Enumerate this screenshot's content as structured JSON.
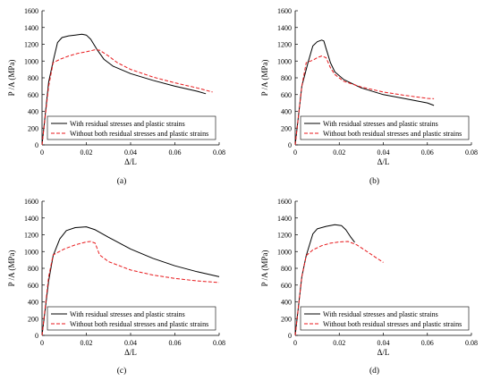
{
  "chart_data": [
    {
      "type": "line",
      "caption": "(a)",
      "xlabel": "Δ/L",
      "ylabel": "P /A (MPa)",
      "xlim": [
        0,
        0.08
      ],
      "ylim": [
        0,
        1600
      ],
      "xticks": [
        "0",
        "0.02",
        "0.04",
        "0.06",
        "0.08"
      ],
      "yticks": [
        "0",
        "200",
        "400",
        "600",
        "800",
        "1000",
        "1200",
        "1400",
        "1600"
      ],
      "legend": "bottom-left",
      "grid": false,
      "series": [
        {
          "name": "With residual stresses and plastic strains",
          "color": "#000000",
          "dash": "solid",
          "points": [
            [
              0,
              0
            ],
            [
              0.003,
              750
            ],
            [
              0.005,
              1000
            ],
            [
              0.007,
              1220
            ],
            [
              0.009,
              1280
            ],
            [
              0.012,
              1300
            ],
            [
              0.015,
              1310
            ],
            [
              0.018,
              1320
            ],
            [
              0.02,
              1310
            ],
            [
              0.022,
              1260
            ],
            [
              0.025,
              1130
            ],
            [
              0.028,
              1020
            ],
            [
              0.032,
              940
            ],
            [
              0.04,
              850
            ],
            [
              0.05,
              770
            ],
            [
              0.06,
              700
            ],
            [
              0.07,
              640
            ],
            [
              0.074,
              610
            ]
          ]
        },
        {
          "name": "Without both residual stresses and plastic strains",
          "color": "#e8191c",
          "dash": "dashed",
          "points": [
            [
              0,
              0
            ],
            [
              0.003,
              700
            ],
            [
              0.005,
              980
            ],
            [
              0.008,
              1020
            ],
            [
              0.012,
              1060
            ],
            [
              0.016,
              1090
            ],
            [
              0.02,
              1110
            ],
            [
              0.024,
              1135
            ],
            [
              0.026,
              1130
            ],
            [
              0.03,
              1060
            ],
            [
              0.034,
              980
            ],
            [
              0.04,
              900
            ],
            [
              0.05,
              810
            ],
            [
              0.06,
              740
            ],
            [
              0.07,
              680
            ],
            [
              0.077,
              630
            ]
          ]
        }
      ]
    },
    {
      "type": "line",
      "caption": "(b)",
      "xlabel": "Δ/L",
      "ylabel": "P /A (MPa)",
      "xlim": [
        0,
        0.08
      ],
      "ylim": [
        0,
        1600
      ],
      "xticks": [
        "0",
        "0.02",
        "0.04",
        "0.06",
        "0.08"
      ],
      "yticks": [
        "0",
        "200",
        "400",
        "600",
        "800",
        "1000",
        "1200",
        "1400",
        "1600"
      ],
      "legend": "bottom-left",
      "grid": false,
      "series": [
        {
          "name": "With residual stresses and plastic strains",
          "color": "#000000",
          "dash": "solid",
          "points": [
            [
              0,
              0
            ],
            [
              0.003,
              700
            ],
            [
              0.006,
              1000
            ],
            [
              0.008,
              1180
            ],
            [
              0.01,
              1230
            ],
            [
              0.012,
              1250
            ],
            [
              0.013,
              1240
            ],
            [
              0.014,
              1150
            ],
            [
              0.016,
              980
            ],
            [
              0.018,
              870
            ],
            [
              0.022,
              780
            ],
            [
              0.03,
              680
            ],
            [
              0.04,
              600
            ],
            [
              0.05,
              550
            ],
            [
              0.06,
              500
            ],
            [
              0.063,
              470
            ]
          ]
        },
        {
          "name": "Without both residual stresses and plastic strains",
          "color": "#e8191c",
          "dash": "dashed",
          "points": [
            [
              0,
              0
            ],
            [
              0.003,
              700
            ],
            [
              0.005,
              980
            ],
            [
              0.008,
              1010
            ],
            [
              0.01,
              1040
            ],
            [
              0.012,
              1060
            ],
            [
              0.014,
              1040
            ],
            [
              0.016,
              920
            ],
            [
              0.018,
              840
            ],
            [
              0.022,
              760
            ],
            [
              0.03,
              690
            ],
            [
              0.04,
              630
            ],
            [
              0.05,
              590
            ],
            [
              0.06,
              555
            ],
            [
              0.063,
              550
            ]
          ]
        }
      ]
    },
    {
      "type": "line",
      "caption": "(c)",
      "xlabel": "Δ/L",
      "ylabel": "P /A (MPa)",
      "xlim": [
        0,
        0.08
      ],
      "ylim": [
        0,
        1600
      ],
      "xticks": [
        "0",
        "0.02",
        "0.04",
        "0.06",
        "0.08"
      ],
      "yticks": [
        "0",
        "200",
        "400",
        "600",
        "800",
        "1000",
        "1200",
        "1400",
        "1600"
      ],
      "legend": "bottom-left",
      "grid": false,
      "series": [
        {
          "name": "With residual stresses and plastic strains",
          "color": "#000000",
          "dash": "solid",
          "points": [
            [
              0,
              0
            ],
            [
              0.003,
              650
            ],
            [
              0.005,
              950
            ],
            [
              0.008,
              1150
            ],
            [
              0.011,
              1250
            ],
            [
              0.015,
              1285
            ],
            [
              0.02,
              1295
            ],
            [
              0.024,
              1260
            ],
            [
              0.03,
              1170
            ],
            [
              0.04,
              1030
            ],
            [
              0.05,
              920
            ],
            [
              0.06,
              830
            ],
            [
              0.07,
              760
            ],
            [
              0.08,
              700
            ]
          ]
        },
        {
          "name": "Without both residual stresses and plastic strains",
          "color": "#e8191c",
          "dash": "dashed",
          "points": [
            [
              0,
              0
            ],
            [
              0.003,
              700
            ],
            [
              0.005,
              960
            ],
            [
              0.01,
              1030
            ],
            [
              0.015,
              1080
            ],
            [
              0.02,
              1115
            ],
            [
              0.022,
              1120
            ],
            [
              0.024,
              1100
            ],
            [
              0.026,
              960
            ],
            [
              0.03,
              880
            ],
            [
              0.04,
              780
            ],
            [
              0.05,
              720
            ],
            [
              0.06,
              680
            ],
            [
              0.07,
              650
            ],
            [
              0.08,
              630
            ]
          ]
        }
      ]
    },
    {
      "type": "line",
      "caption": "(d)",
      "xlabel": "Δ/L",
      "ylabel": "P /A (MPa)",
      "xlim": [
        0,
        0.08
      ],
      "ylim": [
        0,
        1600
      ],
      "xticks": [
        "0",
        "0.02",
        "0.04",
        "0.06",
        "0.08"
      ],
      "yticks": [
        "0",
        "200",
        "400",
        "600",
        "800",
        "1000",
        "1200",
        "1400",
        "1600"
      ],
      "legend": "bottom-left",
      "grid": false,
      "series": [
        {
          "name": "With residual stresses and plastic strains",
          "color": "#000000",
          "dash": "solid",
          "points": [
            [
              0,
              0
            ],
            [
              0.003,
              700
            ],
            [
              0.005,
              950
            ],
            [
              0.008,
              1210
            ],
            [
              0.01,
              1270
            ],
            [
              0.014,
              1300
            ],
            [
              0.018,
              1320
            ],
            [
              0.021,
              1310
            ],
            [
              0.023,
              1260
            ],
            [
              0.025,
              1180
            ],
            [
              0.027,
              1110
            ]
          ]
        },
        {
          "name": "Without both residual stresses and plastic strains",
          "color": "#e8191c",
          "dash": "dashed",
          "points": [
            [
              0,
              0
            ],
            [
              0.003,
              700
            ],
            [
              0.005,
              950
            ],
            [
              0.008,
              1020
            ],
            [
              0.012,
              1070
            ],
            [
              0.016,
              1100
            ],
            [
              0.02,
              1115
            ],
            [
              0.024,
              1120
            ],
            [
              0.028,
              1080
            ],
            [
              0.032,
              1010
            ],
            [
              0.036,
              940
            ],
            [
              0.04,
              870
            ]
          ]
        }
      ]
    }
  ]
}
